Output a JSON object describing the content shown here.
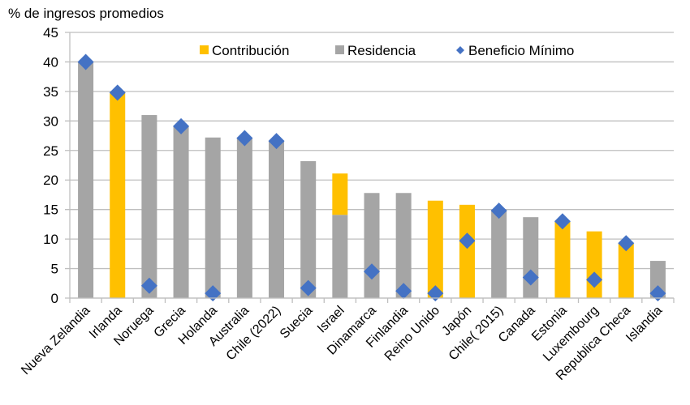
{
  "chart_data": {
    "type": "bar",
    "stacked": true,
    "title": "",
    "ylabel": "% de ingresos promedios",
    "xlabel": "",
    "ylim": [
      0,
      45
    ],
    "yticks": [
      0,
      5,
      10,
      15,
      20,
      25,
      30,
      35,
      40,
      45
    ],
    "grid": true,
    "legend_position": "top-right",
    "categories": [
      "Nueva Zelandia",
      "Irlanda",
      "Noruega",
      "Grecia",
      "Holanda",
      "Australia",
      "Chile (2022)",
      "Suecia",
      "Israel",
      "Dinamarca",
      "Finlandia",
      "Reino Unido",
      "Japón",
      "Chile( 2015)",
      "Canada",
      "Estonia",
      "Luxembourg",
      "Republica Checa",
      "Islandia"
    ],
    "series": [
      {
        "name": "Residencia",
        "kind": "bar",
        "color": "#A5A5A5",
        "values": [
          40.0,
          0,
          31.0,
          29.2,
          27.2,
          27.2,
          26.6,
          23.2,
          14.1,
          17.8,
          17.8,
          0,
          0,
          15.0,
          13.7,
          0,
          0,
          0,
          6.3
        ]
      },
      {
        "name": "Contribución",
        "kind": "bar",
        "color": "#FFC000",
        "values": [
          0,
          34.7,
          0,
          0,
          0,
          0,
          0,
          0,
          7.0,
          0,
          0,
          16.5,
          15.8,
          0,
          0,
          12.9,
          11.3,
          9.2,
          0
        ]
      },
      {
        "name": "Beneficio Mínimo",
        "kind": "marker",
        "marker": "diamond",
        "color": "#4472C4",
        "values": [
          40.0,
          34.8,
          2.1,
          29.1,
          0.8,
          27.1,
          26.6,
          1.7,
          null,
          4.5,
          1.2,
          0.8,
          9.7,
          14.8,
          3.5,
          13.0,
          3.1,
          9.3,
          0.8
        ]
      }
    ],
    "legend": [
      {
        "label": "Contribución",
        "symbol": "square",
        "color": "#FFC000"
      },
      {
        "label": "Residencia",
        "symbol": "square",
        "color": "#A5A5A5"
      },
      {
        "label": "Beneficio Mínimo",
        "symbol": "diamond",
        "color": "#4472C4"
      }
    ]
  }
}
